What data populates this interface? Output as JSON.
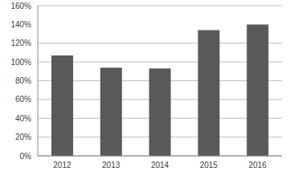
{
  "chart_data": {
    "type": "bar",
    "categories": [
      "2012",
      "2013",
      "2014",
      "2015",
      "2016"
    ],
    "values": [
      107,
      94,
      93,
      134,
      140
    ],
    "color": "#595959",
    "ylim": [
      0,
      160
    ],
    "yticks": [
      {
        "value": 0,
        "label": "0%"
      },
      {
        "value": 20,
        "label": "20%"
      },
      {
        "value": 40,
        "label": "40%"
      },
      {
        "value": 60,
        "label": "60%"
      },
      {
        "value": 80,
        "label": "80%"
      },
      {
        "value": 100,
        "label": "100%"
      },
      {
        "value": 120,
        "label": "120%"
      },
      {
        "value": 140,
        "label": "140%"
      },
      {
        "value": 160,
        "label": "160%"
      }
    ],
    "grid": true
  }
}
